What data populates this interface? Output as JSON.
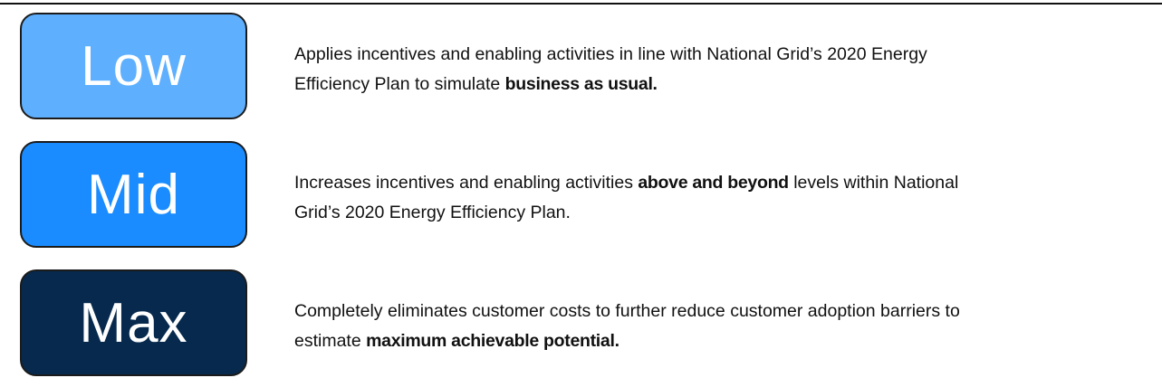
{
  "rows": [
    {
      "label": "Low",
      "color": "#5eb0ff",
      "lines": [
        [
          {
            "text": "Applies incentives and enabling activities in line with National Grid’s 2020 Energy",
            "bold": false
          }
        ],
        [
          {
            "text": "Efficiency Plan to simulate ",
            "bold": false
          },
          {
            "text": "business as usual.",
            "bold": true
          }
        ]
      ]
    },
    {
      "label": "Mid",
      "color": "#1a8cff",
      "lines": [
        [
          {
            "text": "Increases incentives and enabling activities ",
            "bold": false
          },
          {
            "text": "above and beyond",
            "bold": true
          },
          {
            "text": " levels within National",
            "bold": false
          }
        ],
        [
          {
            "text": "Grid’s 2020 Energy Efficiency Plan.",
            "bold": false
          }
        ]
      ]
    },
    {
      "label": "Max",
      "color": "#06294d",
      "lines": [
        [
          {
            "text": "Completely eliminates customer costs to further reduce customer adoption barriers to",
            "bold": false
          }
        ],
        [
          {
            "text": "estimate ",
            "bold": false
          },
          {
            "text": "maximum achievable potential.",
            "bold": true
          }
        ]
      ]
    }
  ]
}
